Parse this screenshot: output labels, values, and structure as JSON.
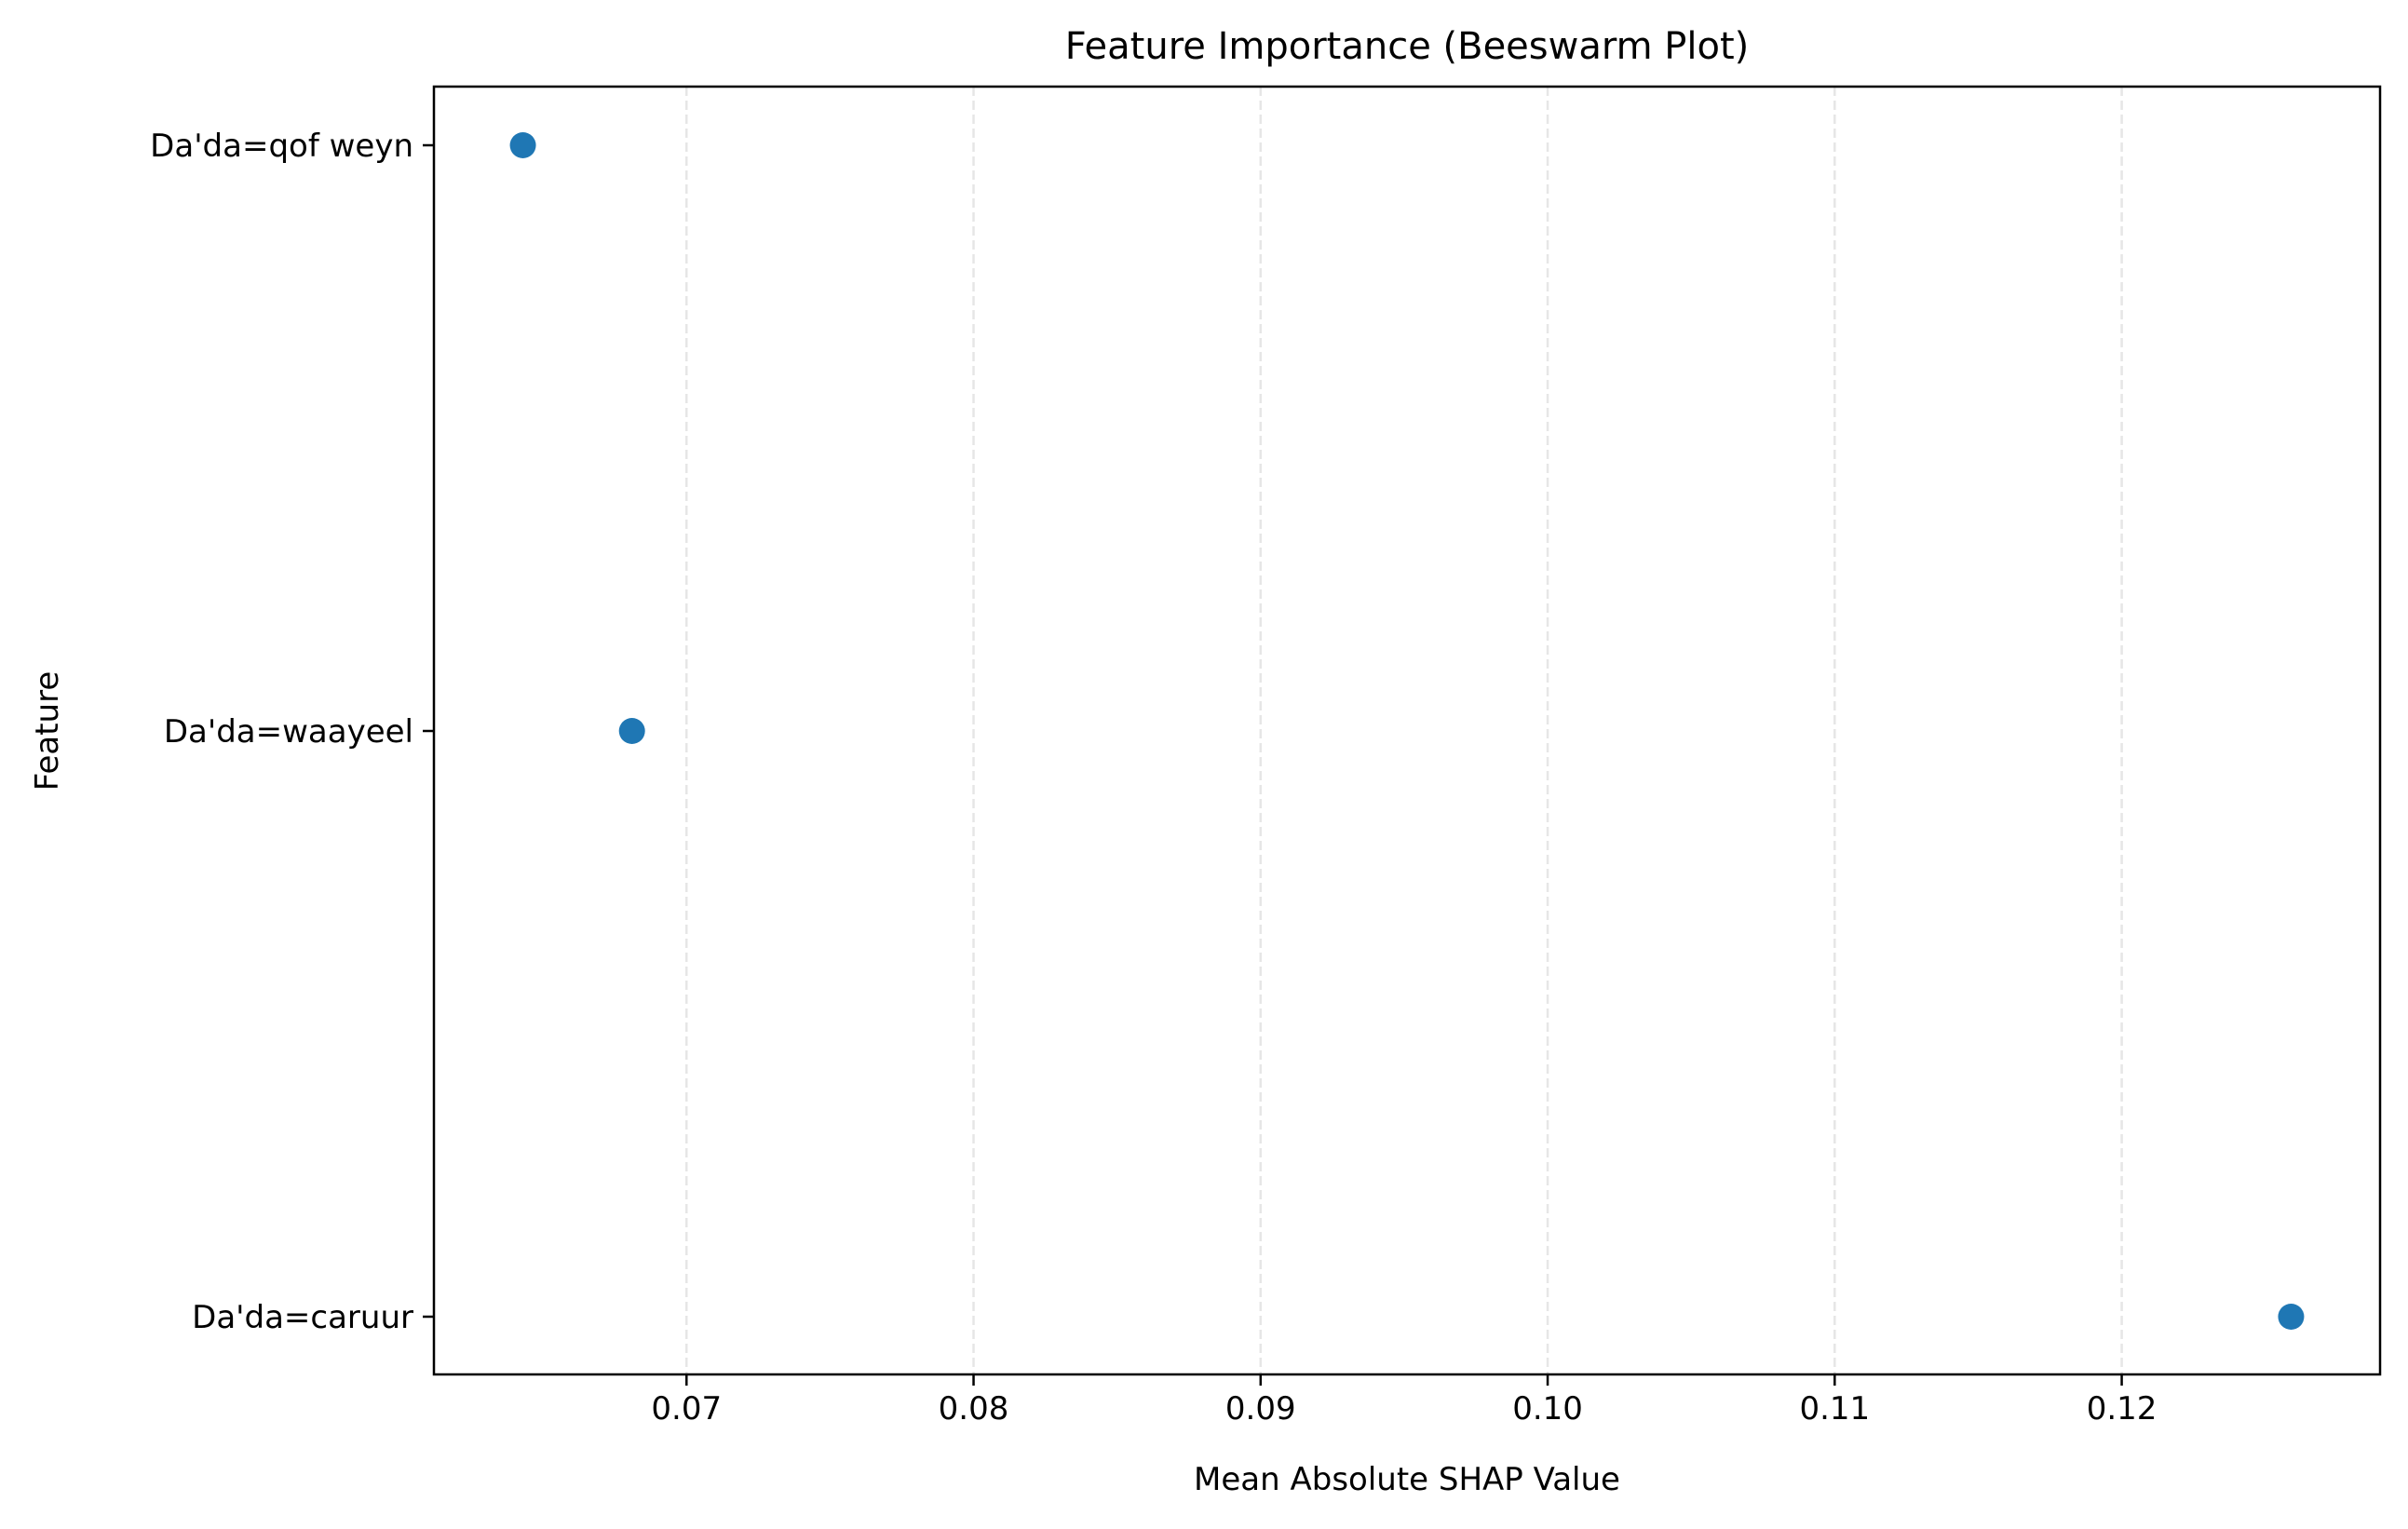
{
  "chart_data": {
    "type": "scatter",
    "title": "Feature Importance (Beeswarm Plot)",
    "xlabel": "Mean Absolute SHAP Value",
    "ylabel": "Feature",
    "categories": [
      "Da'da=qof weyn",
      "Da'da=waayeel",
      "Da'da=caruur"
    ],
    "values": [
      0.0643,
      0.0681,
      0.1259
    ],
    "xlim": [
      0.0612,
      0.129
    ],
    "xticks": [
      0.07,
      0.08,
      0.09,
      0.1,
      0.11,
      0.12
    ],
    "xtick_labels": [
      "0.07",
      "0.08",
      "0.09",
      "0.10",
      "0.11",
      "0.12"
    ],
    "grid": "x, dashed",
    "marker_color": "#1f77b4",
    "grid_color": "#e6e6e6"
  }
}
